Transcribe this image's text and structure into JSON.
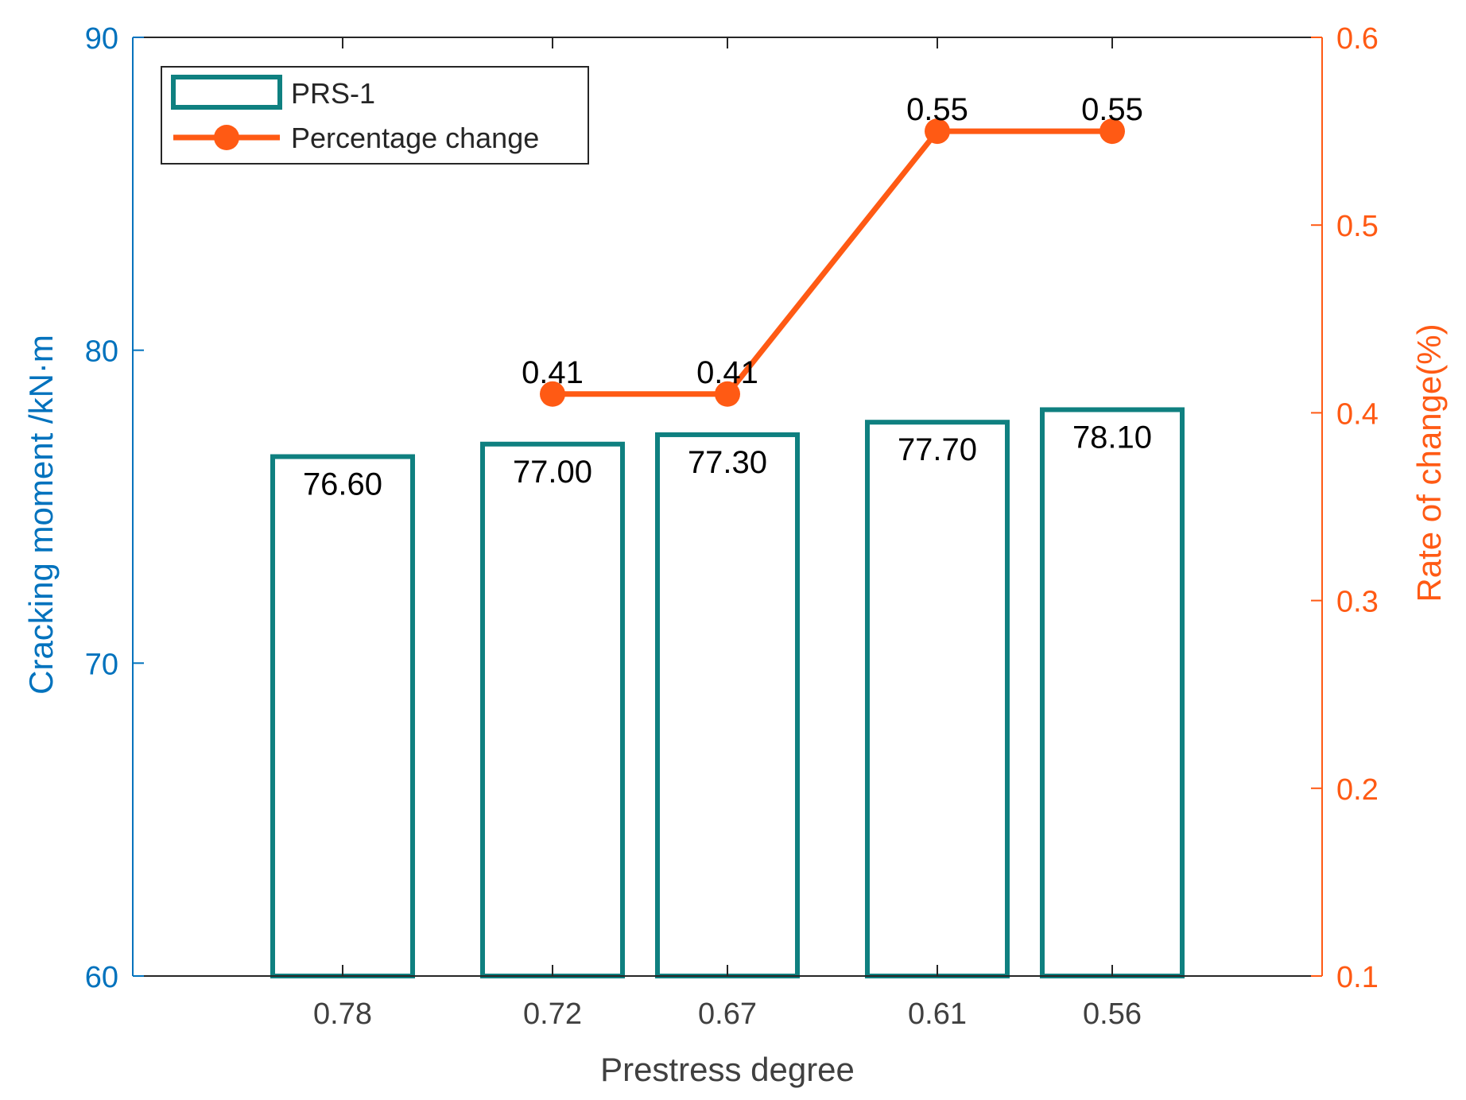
{
  "chart_data": {
    "type": "bar",
    "xlabel": "Prestress degree",
    "categories": [
      "0.78",
      "0.72",
      "0.67",
      "0.61",
      "0.56"
    ],
    "x_positions": [
      0.78,
      0.72,
      0.67,
      0.61,
      0.56
    ],
    "xlim": [
      0.84,
      0.5
    ],
    "y_left": {
      "label": "Cracking moment /kN·m",
      "ylim": [
        60,
        90
      ],
      "ticks": [
        "60",
        "70",
        "80",
        "90"
      ],
      "color": "#0072BD"
    },
    "y_right": {
      "label": "Rate of change(%)",
      "ylim": [
        0.1,
        0.6
      ],
      "ticks": [
        "0.1",
        "0.2",
        "0.3",
        "0.4",
        "0.5",
        "0.6"
      ],
      "color": "#FF5A14"
    },
    "series": [
      {
        "name": "PRS-1",
        "kind": "bar",
        "axis": "left",
        "values": [
          76.6,
          77.0,
          77.3,
          77.7,
          78.1
        ],
        "labels": [
          "76.60",
          "77.00",
          "77.30",
          "77.70",
          "78.10"
        ],
        "color": "#0F8080"
      },
      {
        "name": "Percentage change",
        "kind": "line",
        "axis": "right",
        "values": [
          null,
          0.41,
          0.41,
          0.55,
          0.55
        ],
        "labels": [
          "",
          "0.41",
          "0.41",
          "0.55",
          "0.55"
        ],
        "color": "#FF5A14"
      }
    ],
    "legend": {
      "position": "top-left"
    },
    "grid": false
  }
}
